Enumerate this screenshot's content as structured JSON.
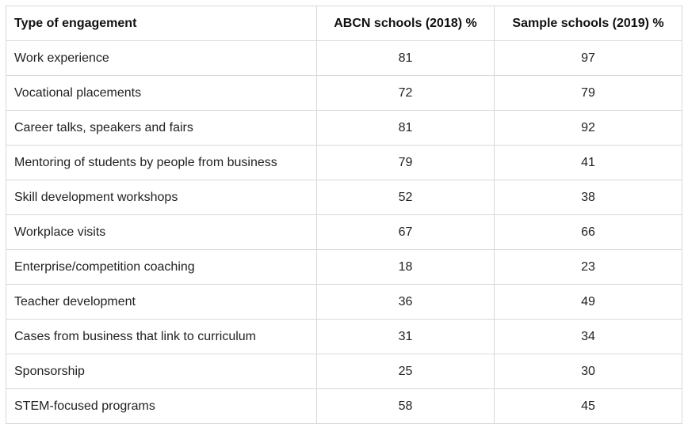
{
  "table": {
    "headers": [
      "Type of engagement",
      "ABCN schools (2018) %",
      "Sample schools (2019) %"
    ],
    "rows": [
      [
        "Work experience",
        "81",
        "97"
      ],
      [
        "Vocational placements",
        "72",
        "79"
      ],
      [
        "Career talks, speakers and fairs",
        "81",
        "92"
      ],
      [
        "Mentoring of students by people from business",
        "79",
        "41"
      ],
      [
        "Skill development workshops",
        "52",
        "38"
      ],
      [
        "Workplace visits",
        "67",
        "66"
      ],
      [
        "Enterprise/competition coaching",
        "18",
        "23"
      ],
      [
        "Teacher development",
        "36",
        "49"
      ],
      [
        "Cases from business that link to curriculum",
        "31",
        "34"
      ],
      [
        "Sponsorship",
        "25",
        "30"
      ],
      [
        "STEM-focused programs",
        "58",
        "45"
      ]
    ]
  }
}
